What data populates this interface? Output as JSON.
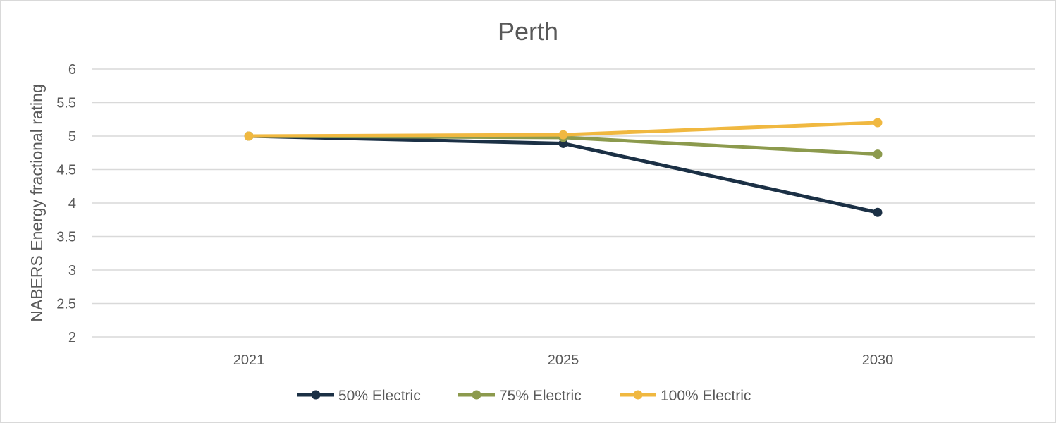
{
  "chart_data": {
    "type": "line",
    "title": "Perth",
    "xlabel": "",
    "ylabel": "NABERS Energy fractional rating",
    "categories": [
      "2021",
      "2025",
      "2030"
    ],
    "ylim": [
      2,
      6
    ],
    "yticks": [
      "2",
      "2.5",
      "3",
      "3.5",
      "4",
      "4.5",
      "5",
      "5.5",
      "6"
    ],
    "grid": true,
    "legend_position": "bottom",
    "series": [
      {
        "name": "50% Electric",
        "values": [
          5.0,
          4.89,
          3.86
        ],
        "color": "#1b3045"
      },
      {
        "name": "75% Electric",
        "values": [
          5.0,
          4.98,
          4.73
        ],
        "color": "#8c9a4d"
      },
      {
        "name": "100% Electric",
        "values": [
          5.0,
          5.02,
          5.2
        ],
        "color": "#f0b840"
      }
    ]
  }
}
